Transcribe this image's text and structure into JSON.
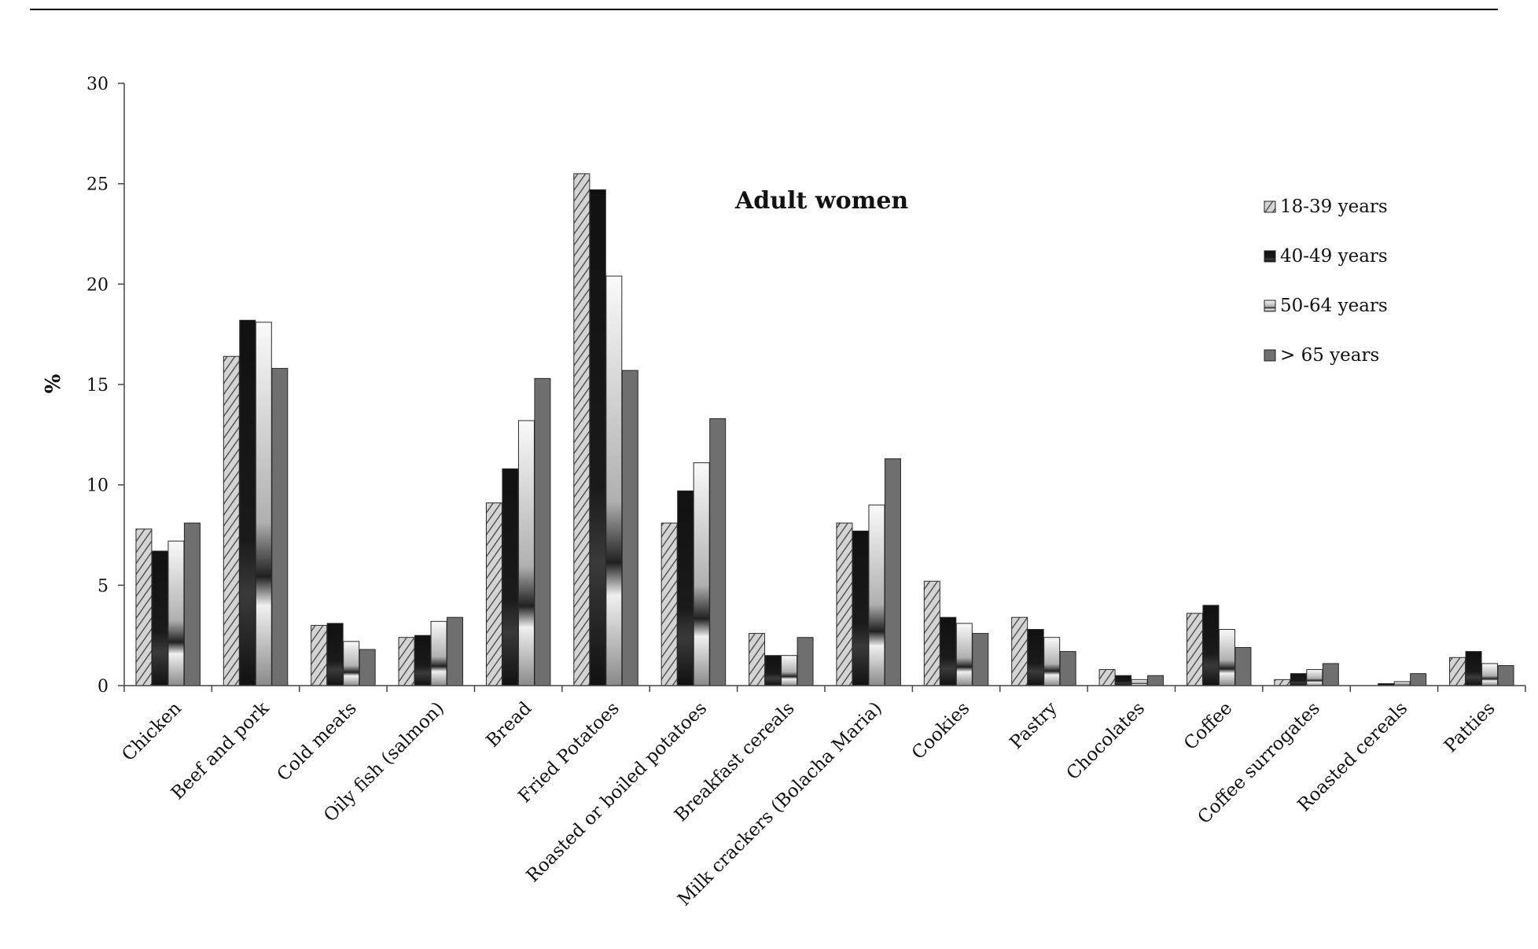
{
  "chart_data": {
    "type": "bar",
    "title": "Adult women",
    "xlabel": "",
    "ylabel": "%",
    "ylim": [
      0,
      30
    ],
    "yticks": [
      "0",
      "5",
      "10",
      "15",
      "20",
      "25",
      "30"
    ],
    "grid": false,
    "legend_position": "top-right",
    "categories": [
      "Chicken",
      "Beef and pork",
      "Cold meats",
      "Oily fish (salmon)",
      "Bread",
      "Fried Potatoes",
      "Roasted or boiled potatoes",
      "Breakfast cereals",
      "Milk crackers (Bolacha Maria)",
      "Cookies",
      "Pastry",
      "Chocolates",
      "Coffee",
      "Coffee surrogates",
      "Roasted cereals",
      "Patties"
    ],
    "series": [
      {
        "name": "18-39 years",
        "color": "#bdbdbd",
        "pattern": "hatched",
        "values": [
          7.8,
          16.4,
          3.0,
          2.4,
          9.1,
          25.5,
          8.1,
          2.6,
          8.1,
          5.2,
          3.4,
          0.8,
          3.6,
          0.3,
          0.0,
          1.4
        ]
      },
      {
        "name": "40-49 years",
        "color": "#1e1e1e",
        "pattern": "dark",
        "values": [
          6.7,
          18.2,
          3.1,
          2.5,
          10.8,
          24.7,
          9.7,
          1.5,
          7.7,
          3.4,
          2.8,
          0.5,
          4.0,
          0.6,
          0.1,
          1.7
        ]
      },
      {
        "name": "50-64 years",
        "color": "#d9d9d9",
        "pattern": "light-gradient",
        "values": [
          7.2,
          18.1,
          2.2,
          3.2,
          13.2,
          20.4,
          11.1,
          1.5,
          9.0,
          3.1,
          2.4,
          0.3,
          2.8,
          0.8,
          0.2,
          1.1
        ]
      },
      {
        "name": "> 65 years",
        "color": "#707070",
        "pattern": "solid",
        "values": [
          8.1,
          15.8,
          1.8,
          3.4,
          15.3,
          15.7,
          13.3,
          2.4,
          11.3,
          2.6,
          1.7,
          0.5,
          1.9,
          1.1,
          0.6,
          1.0
        ]
      }
    ]
  }
}
